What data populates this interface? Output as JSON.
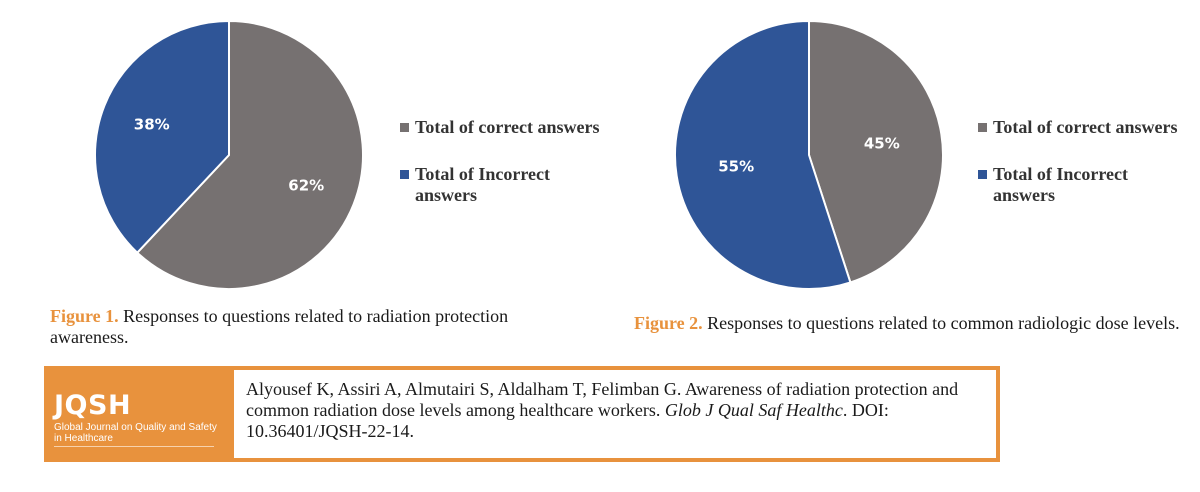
{
  "chart_data": [
    {
      "type": "pie",
      "slices": [
        {
          "label": "Total of correct answers",
          "value": 62,
          "display": "62%",
          "color": "#767171"
        },
        {
          "label": "Total of Incorrect answers",
          "value": 38,
          "display": "38%",
          "color": "#2f5597"
        }
      ],
      "legend": [
        "Total of correct answers",
        "Total of Incorrect answers"
      ],
      "legend_position": "right"
    },
    {
      "type": "pie",
      "slices": [
        {
          "label": "Total of correct answers",
          "value": 45,
          "display": "45%",
          "color": "#767171"
        },
        {
          "label": "Total of Incorrect answers",
          "value": 55,
          "display": "55%",
          "color": "#2f5597"
        }
      ],
      "legend": [
        "Total of correct answers",
        "Total of Incorrect answers"
      ],
      "legend_position": "right"
    }
  ],
  "figure1": {
    "label": "Figure 1.",
    "caption": "Responses to questions related to radiation protection awareness."
  },
  "figure2": {
    "label": "Figure 2.",
    "caption": "Responses to questions related to common radiologic dose levels."
  },
  "logo": {
    "title": "JQSH",
    "subtitle": "Global Journal on Quality and Safety in Healthcare",
    "background": "#e8923d"
  },
  "citation": {
    "text_before": "Alyousef K, Assiri A, Almutairi S, Aldalham T, Felimban G. Awareness of radiation protection and common radiation dose levels among healthcare workers. ",
    "journal": "Glob J Qual Saf Healthc",
    "text_after": ". DOI: 10.36401/JQSH-22-14."
  }
}
